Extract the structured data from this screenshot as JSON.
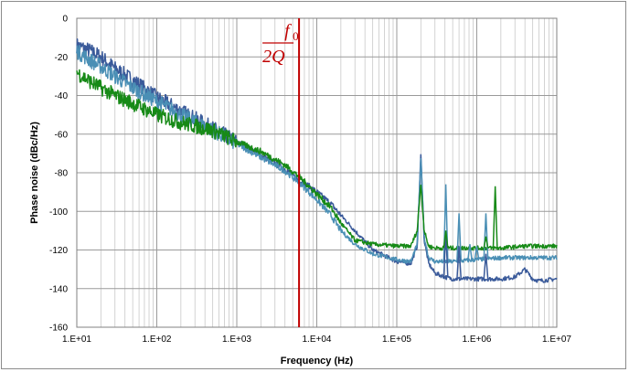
{
  "chart_data": {
    "type": "line",
    "title": "",
    "xlabel": "Frequency (Hz)",
    "ylabel": "Phase noise (dBc/Hz)",
    "x_scale": "log",
    "xlim": [
      10,
      10000000
    ],
    "ylim": [
      -160,
      0
    ],
    "x_tick_labels": [
      "1.E+01",
      "1.E+02",
      "1.E+03",
      "1.E+04",
      "1.E+05",
      "1.E+06",
      "1.E+07"
    ],
    "y_tick_labels": [
      "0",
      "-20",
      "-40",
      "-60",
      "-80",
      "-100",
      "-120",
      "-140",
      "-160"
    ],
    "grid": true,
    "legend": "none",
    "annotation": {
      "numerator": "f",
      "numerator_subscript": "0",
      "denominator": "2Q",
      "x": 6000,
      "color": "#c00000"
    },
    "series": [
      {
        "color": "#3a5a9a",
        "x": [
          10,
          15,
          20,
          30,
          50,
          100,
          200,
          500,
          1000,
          2000,
          4000,
          6000,
          8000,
          10000,
          15000,
          20000,
          30000,
          50000,
          100000,
          150000,
          180000,
          200000,
          220000,
          250000,
          300000,
          400000,
          500000,
          1000000,
          2000000,
          3000000,
          4000000,
          5000000,
          6000000,
          10000000
        ],
        "y": [
          -14,
          -17,
          -20,
          -26,
          -32,
          -41,
          -48,
          -57,
          -64,
          -71,
          -78,
          -84,
          -87,
          -90,
          -96,
          -102,
          -110,
          -120,
          -126,
          -127,
          -118,
          -70,
          -115,
          -127,
          -132,
          -134,
          -135,
          -135,
          -135,
          -134,
          -130,
          -135,
          -136,
          -135
        ]
      },
      {
        "color": "#4a8fb5",
        "x": [
          10,
          15,
          20,
          30,
          50,
          100,
          200,
          500,
          1000,
          2000,
          4000,
          6000,
          8000,
          10000,
          15000,
          20000,
          30000,
          50000,
          100000,
          150000,
          180000,
          200000,
          220000,
          250000,
          300000,
          500000,
          1000000,
          2000000,
          4000000,
          10000000
        ],
        "y": [
          -17,
          -22,
          -25,
          -30,
          -36,
          -43,
          -50,
          -58,
          -65,
          -72,
          -79,
          -85,
          -90,
          -94,
          -102,
          -110,
          -117,
          -122,
          -125,
          -126,
          -117,
          -72,
          -113,
          -124,
          -126,
          -126,
          -125,
          -124,
          -124,
          -124
        ]
      },
      {
        "color": "#178a17",
        "x": [
          10,
          15,
          20,
          30,
          50,
          100,
          200,
          500,
          1000,
          2000,
          4000,
          6000,
          8000,
          10000,
          15000,
          20000,
          30000,
          50000,
          100000,
          150000,
          180000,
          200000,
          220000,
          250000,
          300000,
          500000,
          1000000,
          2000000,
          4000000,
          10000000
        ],
        "y": [
          -28,
          -33,
          -36,
          -40,
          -44,
          -50,
          -54,
          -58,
          -64,
          -69,
          -76,
          -82,
          -87,
          -91,
          -98,
          -106,
          -115,
          -117,
          -118,
          -118,
          -110,
          -85,
          -110,
          -118,
          -119,
          -119,
          -119,
          -119,
          -118,
          -118
        ]
      }
    ],
    "spikes": [
      {
        "series": 1,
        "x": 410000,
        "y": -86
      },
      {
        "series": 1,
        "x": 600000,
        "y": -101
      },
      {
        "series": 1,
        "x": 820000,
        "y": -117
      },
      {
        "series": 1,
        "x": 1000000,
        "y": -118
      },
      {
        "series": 1,
        "x": 1300000,
        "y": -101
      },
      {
        "series": 0,
        "x": 410000,
        "y": -110
      },
      {
        "series": 0,
        "x": 600000,
        "y": -118
      },
      {
        "series": 0,
        "x": 1300000,
        "y": -122
      },
      {
        "series": 2,
        "x": 410000,
        "y": -110
      },
      {
        "series": 2,
        "x": 1300000,
        "y": -113
      },
      {
        "series": 2,
        "x": 1700000,
        "y": -87
      }
    ]
  }
}
